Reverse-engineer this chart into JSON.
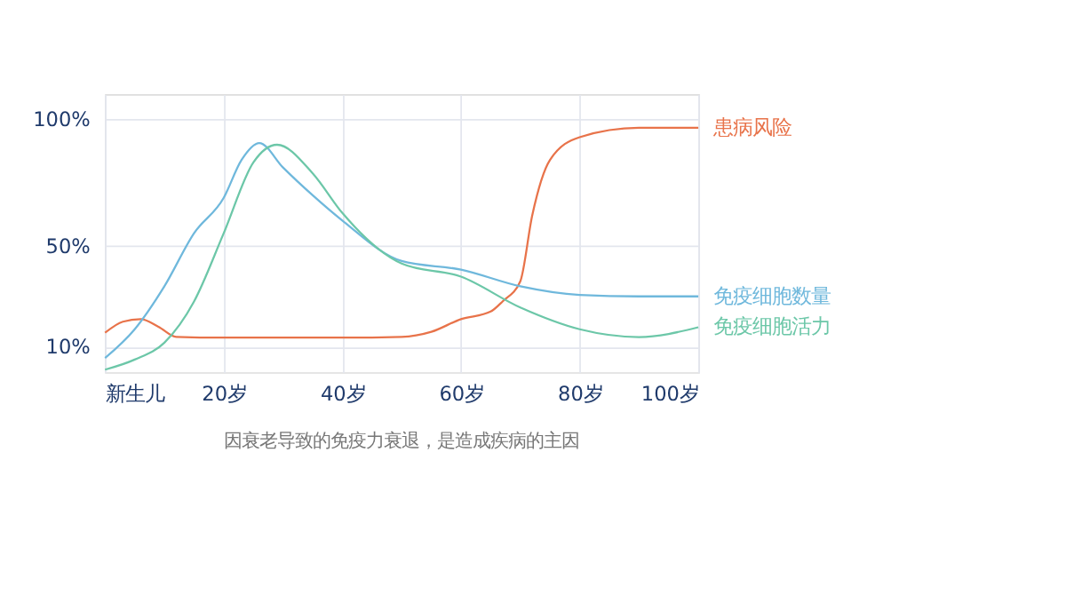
{
  "chart_data": {
    "type": "line",
    "xlim": [
      0,
      100
    ],
    "xticks": [
      {
        "value": 0,
        "label": "新生儿"
      },
      {
        "value": 20,
        "label": "20岁"
      },
      {
        "value": 40,
        "label": "40岁"
      },
      {
        "value": 60,
        "label": "60岁"
      },
      {
        "value": 80,
        "label": "80岁"
      },
      {
        "value": 100,
        "label": "100岁"
      }
    ],
    "ylim": [
      0,
      110
    ],
    "yticks": [
      {
        "value": 10,
        "label": "10%"
      },
      {
        "value": 50,
        "label": "50%"
      },
      {
        "value": 100,
        "label": "100%"
      }
    ],
    "grid": true,
    "legend": false,
    "line_style": "solid",
    "marker": "none",
    "series": [
      {
        "name": "患病风险",
        "color": "#e8734a",
        "x": [
          0,
          3,
          6,
          9,
          12,
          20,
          30,
          40,
          50,
          55,
          60,
          65,
          67,
          70,
          72,
          75,
          80,
          90,
          100
        ],
        "values": [
          15.6,
          20,
          21,
          18,
          14,
          13.7,
          13.7,
          13.7,
          14,
          16,
          21,
          24,
          28,
          36,
          62,
          84,
          93,
          96.7,
          96.7
        ]
      },
      {
        "name": "免疫细胞数量",
        "color": "#6fb8dc",
        "x": [
          0,
          5,
          10,
          15,
          20,
          23,
          26,
          30,
          35,
          40,
          50,
          60,
          70,
          80,
          90,
          100
        ],
        "values": [
          5.6,
          17,
          34,
          55,
          69,
          84,
          90.7,
          81,
          70,
          60,
          44,
          40.6,
          34,
          30.6,
          30,
          30
        ]
      },
      {
        "name": "免疫细胞活力",
        "color": "#6cc7a8",
        "x": [
          0,
          5,
          10,
          15,
          20,
          25,
          29,
          35,
          40,
          50,
          60,
          70,
          80,
          90,
          100
        ],
        "values": [
          1,
          5,
          11.7,
          28,
          55,
          83,
          90,
          78.7,
          63,
          43,
          37.8,
          25.6,
          17,
          13.9,
          17.8
        ]
      }
    ],
    "annotations": [
      "因衰老导致的免疫力衰退，是造成疾病的主因"
    ]
  }
}
